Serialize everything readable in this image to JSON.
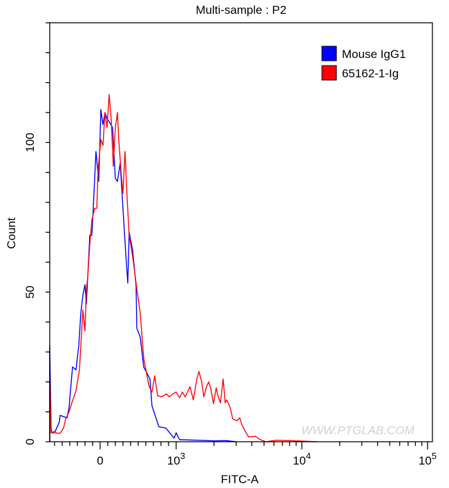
{
  "chart_data": {
    "type": "line",
    "title": "Multi-sample : P2",
    "xlabel": "FITC-A",
    "ylabel": "Count",
    "x_scale": "biexponential",
    "xlim": [
      -664,
      100000
    ],
    "ylim": [
      0,
      140
    ],
    "x_tick_labels": [
      {
        "value": 0,
        "base": "0",
        "exp": ""
      },
      {
        "value": 1000,
        "base": "10",
        "exp": "3"
      },
      {
        "value": 10000,
        "base": "10",
        "exp": "4"
      },
      {
        "value": 100000,
        "base": "10",
        "exp": "5"
      }
    ],
    "y_tick_labels": [
      0,
      50,
      100
    ],
    "grid": false,
    "legend_position": "top-right",
    "watermark": "WWW.PTGLAB.COM",
    "series": [
      {
        "name": "Mouse IgG1",
        "color": "#0000ff",
        "x": [
          -664,
          -664,
          -645,
          -636,
          -591,
          -536,
          -527,
          -436,
          -409,
          -364,
          -318,
          -282,
          -255,
          -227,
          -200,
          -182,
          -164,
          -136,
          -109,
          -91,
          -55,
          -18,
          9,
          36,
          64,
          91,
          118,
          164,
          200,
          227,
          264,
          300,
          336,
          364,
          382,
          427,
          473,
          482,
          527,
          573,
          655,
          682,
          773,
          864,
          973,
          1000,
          1065,
          1500,
          2000,
          2500,
          3000
        ],
        "y": [
          0,
          32,
          5,
          3,
          3.5,
          6.7,
          8.8,
          8,
          11.5,
          25,
          24,
          32,
          43,
          49,
          52.5,
          46,
          55,
          69,
          69,
          78,
          97,
          87,
          111,
          106,
          110,
          108,
          107,
          105,
          88,
          87,
          93,
          78,
          63,
          53,
          70,
          64,
          52,
          38,
          35,
          25,
          21,
          12,
          5,
          4.6,
          1.2,
          3,
          0.7,
          0.5,
          0.3,
          0.4,
          0
        ]
      },
      {
        "name": "65162-1-Ig",
        "color": "#ff0000",
        "x": [
          -664,
          -664,
          -645,
          -591,
          -527,
          -482,
          -455,
          -409,
          -373,
          -318,
          -273,
          -227,
          -200,
          -182,
          -164,
          -136,
          -109,
          -73,
          -45,
          -27,
          9,
          36,
          64,
          91,
          118,
          145,
          173,
          200,
          227,
          245,
          282,
          300,
          327,
          355,
          382,
          427,
          473,
          527,
          573,
          609,
          645,
          682,
          718,
          755,
          800,
          836,
          873,
          909,
          955,
          1000,
          1065,
          1120,
          1180,
          1288,
          1371,
          1461,
          1518,
          1597,
          1659,
          1745,
          1812,
          1883,
          1981,
          2083,
          2163,
          2249,
          2364,
          2455,
          2518,
          2685,
          2823,
          3047,
          3201,
          3327,
          3542,
          3774,
          4285,
          4677,
          5178,
          6263,
          9000,
          13370
        ],
        "y": [
          0,
          23,
          3,
          3,
          2.8,
          4.6,
          7.6,
          10,
          13,
          17,
          24,
          44,
          37,
          51,
          55,
          66,
          74,
          78,
          78,
          91,
          101,
          99,
          110,
          105,
          116,
          108,
          92,
          105,
          110,
          101,
          88,
          83,
          97,
          81,
          69,
          62,
          53,
          43,
          28,
          23,
          18.5,
          16.6,
          22,
          15.4,
          15,
          15.4,
          16,
          15,
          16,
          16.6,
          14.7,
          16.6,
          15,
          18.4,
          14,
          21,
          23.5,
          20,
          15,
          18.4,
          20,
          18,
          12.7,
          18,
          15,
          13,
          21,
          13,
          14,
          11.5,
          7.6,
          7,
          8,
          5.8,
          3.5,
          1.6,
          1.8,
          0.7,
          0,
          0.5,
          0.3,
          0
        ]
      }
    ]
  }
}
